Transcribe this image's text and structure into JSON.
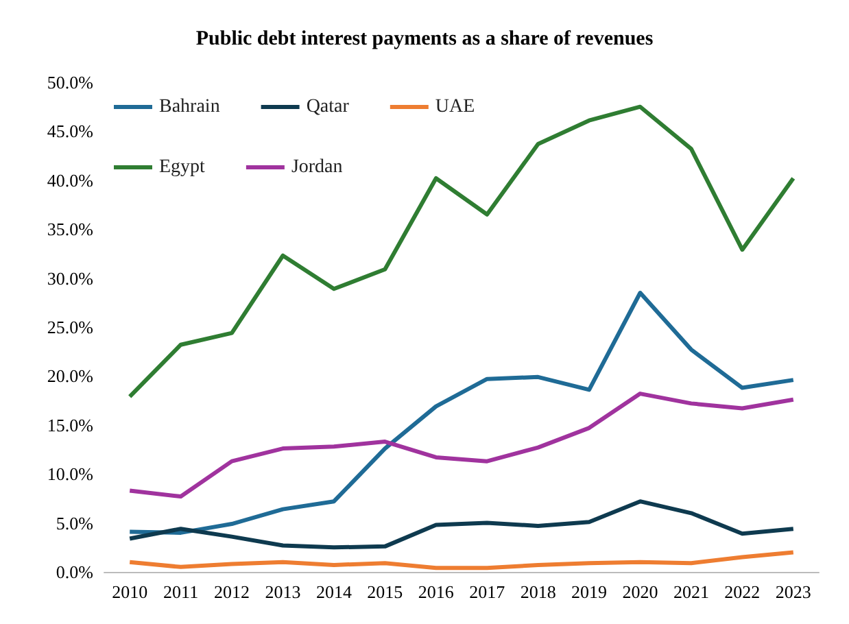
{
  "chart_data": {
    "type": "line",
    "title": "Public debt interest payments as a share of revenues",
    "categories": [
      "2010",
      "2011",
      "2012",
      "2013",
      "2014",
      "2015",
      "2016",
      "2017",
      "2018",
      "2019",
      "2020",
      "2021",
      "2022",
      "2023"
    ],
    "series": [
      {
        "name": "Bahrain",
        "color": "#1f6b96",
        "values": [
          4.1,
          4.0,
          4.9,
          6.4,
          7.2,
          12.6,
          16.9,
          19.7,
          19.9,
          18.6,
          28.5,
          22.7,
          18.8,
          19.6
        ]
      },
      {
        "name": "Qatar",
        "color": "#0e3a4f",
        "values": [
          3.4,
          4.4,
          3.6,
          2.7,
          2.5,
          2.6,
          4.8,
          5.0,
          4.7,
          5.1,
          7.2,
          6.0,
          3.9,
          4.4
        ]
      },
      {
        "name": "UAE",
        "color": "#ee7d31",
        "values": [
          1.0,
          0.5,
          0.8,
          1.0,
          0.7,
          0.9,
          0.4,
          0.4,
          0.7,
          0.9,
          1.0,
          0.9,
          1.5,
          2.0
        ]
      },
      {
        "name": "Egypt",
        "color": "#2f7d32",
        "values": [
          17.9,
          23.2,
          24.4,
          32.3,
          28.9,
          30.9,
          40.2,
          36.5,
          43.7,
          46.1,
          47.5,
          43.2,
          32.9,
          40.2
        ]
      },
      {
        "name": "Jordan",
        "color": "#a0339e",
        "values": [
          8.3,
          7.7,
          11.3,
          12.6,
          12.8,
          13.3,
          11.7,
          11.3,
          12.7,
          14.7,
          18.2,
          17.2,
          16.7,
          17.6
        ]
      }
    ],
    "ylim": [
      0,
      50
    ],
    "yticks": [
      {
        "value": 0,
        "label": "0.0%"
      },
      {
        "value": 5,
        "label": "5.0%"
      },
      {
        "value": 10,
        "label": "10.0%"
      },
      {
        "value": 15,
        "label": "15.0%"
      },
      {
        "value": 20,
        "label": "20.0%"
      },
      {
        "value": 25,
        "label": "25.0%"
      },
      {
        "value": 30,
        "label": "30.0%"
      },
      {
        "value": 35,
        "label": "35.0%"
      },
      {
        "value": 40,
        "label": "40.0%"
      },
      {
        "value": 45,
        "label": "45.0%"
      },
      {
        "value": 50,
        "label": "50.0%"
      }
    ],
    "grid": false,
    "legend": "top left",
    "marker": "none",
    "line_style": "solid"
  }
}
